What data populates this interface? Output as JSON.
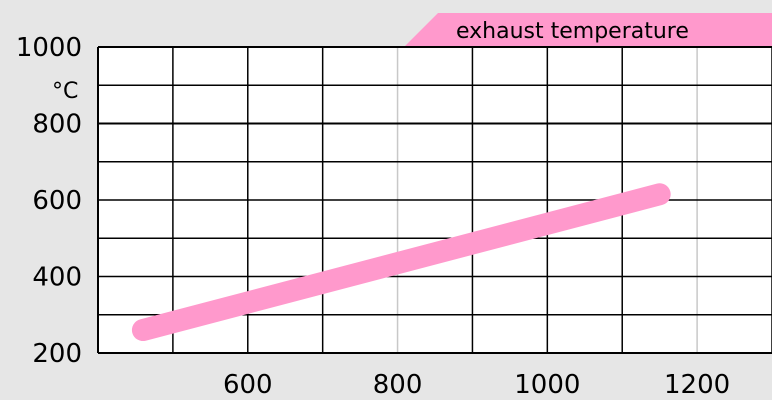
{
  "chart_data": {
    "type": "line",
    "title": "exhaust temperature",
    "xlabel": "",
    "ylabel": "°C",
    "xlim": [
      400,
      1300
    ],
    "ylim": [
      200,
      1000
    ],
    "xticks": [
      600,
      800,
      1000,
      1200
    ],
    "xtick_labels": [
      "600",
      "800",
      "1000",
      "1200"
    ],
    "yticks": [
      200,
      400,
      600,
      800,
      1000
    ],
    "ytick_labels": [
      "200",
      "400",
      "600",
      "800",
      "1000"
    ],
    "grid": true,
    "colors": {
      "background": "#e6e6e6",
      "plot_area": "#ffffff",
      "grid_major": "#000000",
      "grid_minor": "#c8c8c8",
      "series": "#ff99cc",
      "tab_fill": "#ff99cc"
    },
    "series": [
      {
        "x": [
          460,
          1150
        ],
        "y": [
          260,
          615
        ]
      }
    ]
  }
}
